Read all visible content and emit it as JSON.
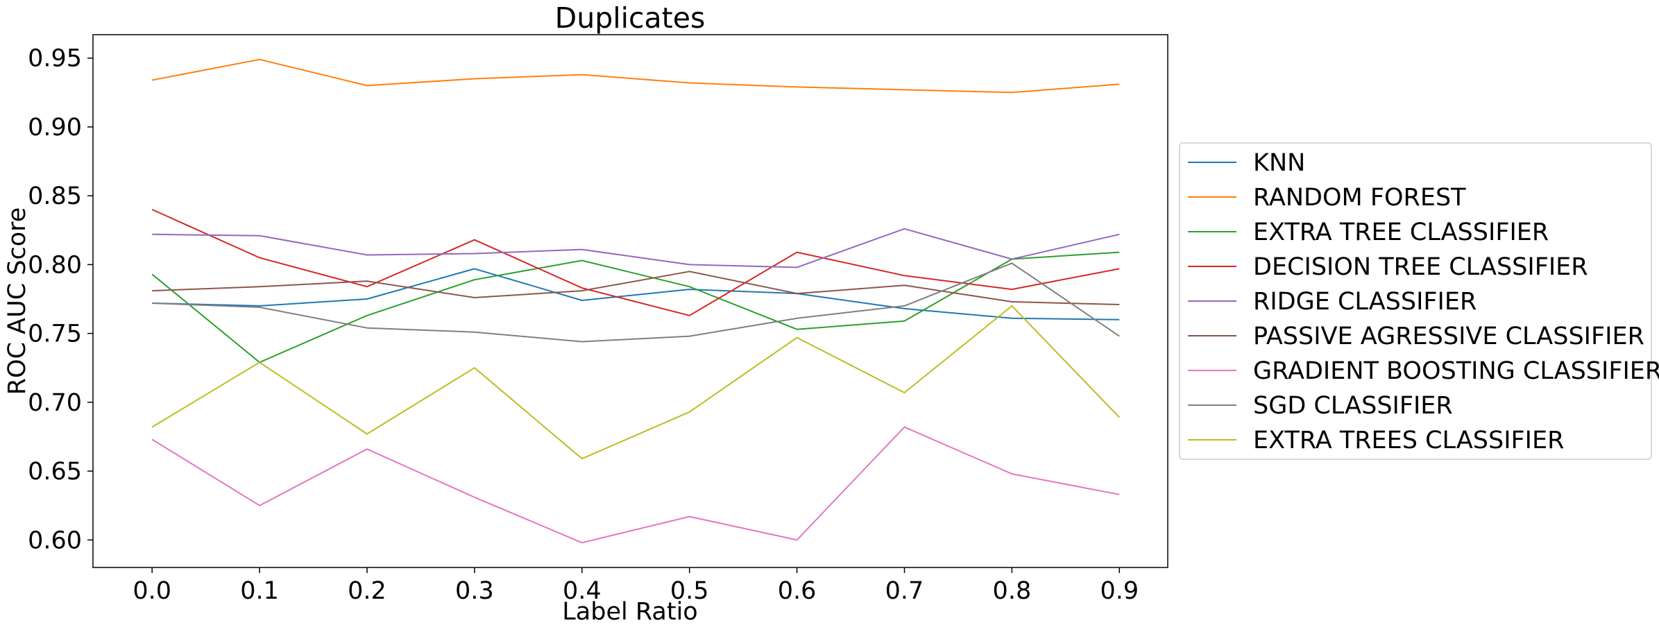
{
  "chart_data": {
    "type": "line",
    "title": "Duplicates",
    "xlabel": "Label Ratio",
    "ylabel": "ROC AUC Score",
    "x": [
      0.0,
      0.1,
      0.2,
      0.3,
      0.4,
      0.5,
      0.6,
      0.7,
      0.8,
      0.9
    ],
    "xticks": [
      "0.0",
      "0.1",
      "0.2",
      "0.3",
      "0.4",
      "0.5",
      "0.6",
      "0.7",
      "0.8",
      "0.9"
    ],
    "yticks": [
      "0.60",
      "0.65",
      "0.70",
      "0.75",
      "0.80",
      "0.85",
      "0.90",
      "0.95"
    ],
    "xlim": [
      -0.055,
      0.945
    ],
    "ylim": [
      0.58,
      0.967
    ],
    "grid": false,
    "legend_position": "center-right outside",
    "series": [
      {
        "name": "KNN",
        "color": "#1f77b4",
        "values": [
          0.772,
          0.77,
          0.775,
          0.797,
          0.774,
          0.782,
          0.779,
          0.768,
          0.761,
          0.76
        ]
      },
      {
        "name": "RANDOM FOREST",
        "color": "#ff7f0e",
        "values": [
          0.934,
          0.949,
          0.93,
          0.935,
          0.938,
          0.932,
          0.929,
          0.927,
          0.925,
          0.931
        ]
      },
      {
        "name": "EXTRA TREE CLASSIFIER",
        "color": "#2ca02c",
        "values": [
          0.793,
          0.729,
          0.763,
          0.789,
          0.803,
          0.784,
          0.753,
          0.759,
          0.804,
          0.809
        ]
      },
      {
        "name": "DECISION TREE CLASSIFIER",
        "color": "#d62728",
        "values": [
          0.84,
          0.805,
          0.784,
          0.818,
          0.783,
          0.763,
          0.809,
          0.792,
          0.782,
          0.797
        ]
      },
      {
        "name": "RIDGE CLASSIFIER",
        "color": "#9467bd",
        "values": [
          0.822,
          0.821,
          0.807,
          0.808,
          0.811,
          0.8,
          0.798,
          0.826,
          0.804,
          0.822
        ]
      },
      {
        "name": "PASSIVE AGRESSIVE CLASSIFIER",
        "color": "#8c564b",
        "values": [
          0.781,
          0.784,
          0.788,
          0.776,
          0.781,
          0.795,
          0.779,
          0.785,
          0.773,
          0.771
        ]
      },
      {
        "name": "GRADIENT BOOSTING CLASSIFIER",
        "color": "#e377c2",
        "values": [
          0.673,
          0.625,
          0.666,
          0.631,
          0.598,
          0.617,
          0.6,
          0.682,
          0.648,
          0.633
        ]
      },
      {
        "name": "SGD CLASSIFIER",
        "color": "#7f7f7f",
        "values": [
          0.772,
          0.769,
          0.754,
          0.751,
          0.744,
          0.748,
          0.761,
          0.77,
          0.801,
          0.748
        ]
      },
      {
        "name": "EXTRA TREES CLASSIFIER",
        "color": "#bcbd22",
        "values": [
          0.682,
          0.729,
          0.677,
          0.725,
          0.659,
          0.693,
          0.747,
          0.707,
          0.77,
          0.689
        ]
      }
    ]
  }
}
